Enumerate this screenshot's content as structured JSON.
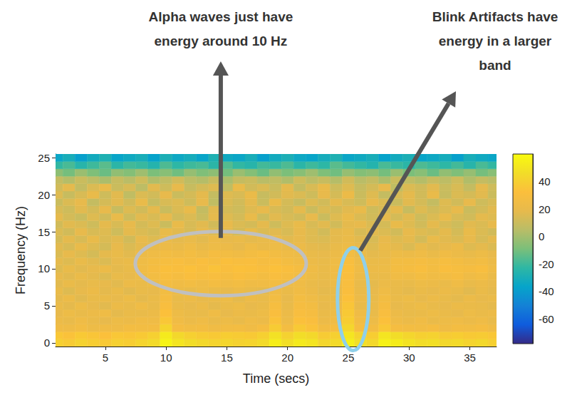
{
  "chart_data": {
    "type": "heatmap",
    "xlabel": "Time (secs)",
    "ylabel": "Frequency (Hz)",
    "grid": false,
    "x": [
      1,
      2,
      3,
      4,
      5,
      6,
      7,
      8,
      9,
      10,
      11,
      12,
      13,
      14,
      15,
      16,
      17,
      18,
      19,
      20,
      21,
      22,
      23,
      24,
      25,
      26,
      27,
      28,
      29,
      30,
      31,
      32,
      33,
      34,
      35,
      36,
      37
    ],
    "y": [
      0,
      1,
      2,
      3,
      4,
      5,
      6,
      7,
      8,
      9,
      10,
      11,
      12,
      13,
      14,
      15,
      16,
      17,
      18,
      19,
      20,
      21,
      22,
      23,
      24,
      25
    ],
    "cells": [
      [
        40,
        38,
        41,
        39,
        37,
        40,
        39,
        42,
        45,
        57,
        50,
        46,
        44,
        42,
        43,
        41,
        42,
        45,
        54,
        47,
        52,
        50,
        43,
        45,
        55,
        47,
        44,
        56,
        53,
        49,
        46,
        47,
        44,
        45,
        42,
        44,
        40
      ],
      [
        36,
        34,
        37,
        35,
        33,
        36,
        35,
        37,
        40,
        52,
        44,
        40,
        38,
        37,
        39,
        38,
        37,
        40,
        48,
        41,
        46,
        44,
        38,
        40,
        50,
        42,
        39,
        50,
        46,
        43,
        40,
        41,
        38,
        39,
        37,
        38,
        36
      ],
      [
        25,
        24,
        26,
        23,
        25,
        24,
        27,
        26,
        27,
        42,
        28,
        26,
        27,
        25,
        26,
        27,
        25,
        28,
        38,
        27,
        37,
        34,
        26,
        29,
        43,
        29,
        27,
        36,
        28,
        27,
        26,
        28,
        25,
        27,
        26,
        28,
        25
      ],
      [
        22,
        20,
        24,
        21,
        19,
        23,
        22,
        25,
        24,
        36,
        25,
        22,
        24,
        21,
        23,
        20,
        24,
        22,
        34,
        23,
        33,
        31,
        22,
        25,
        39,
        26,
        23,
        33,
        24,
        22,
        25,
        21,
        23,
        24,
        22,
        24,
        20
      ],
      [
        19,
        23,
        20,
        22,
        24,
        18,
        21,
        20,
        22,
        33,
        23,
        21,
        20,
        24,
        19,
        22,
        21,
        23,
        31,
        22,
        30,
        28,
        21,
        23,
        37,
        24,
        20,
        30,
        22,
        20,
        21,
        23,
        21,
        19,
        23,
        21,
        22
      ],
      [
        21,
        18,
        23,
        19,
        17,
        22,
        20,
        24,
        20,
        30,
        21,
        19,
        22,
        18,
        21,
        23,
        19,
        21,
        29,
        20,
        28,
        26,
        19,
        22,
        35,
        20,
        21,
        28,
        19,
        21,
        23,
        20,
        19,
        22,
        21,
        20,
        18
      ],
      [
        18,
        22,
        17,
        20,
        21,
        19,
        23,
        18,
        21,
        28,
        20,
        22,
        19,
        21,
        23,
        18,
        22,
        20,
        26,
        19,
        27,
        24,
        20,
        21,
        33,
        22,
        20,
        26,
        21,
        23,
        19,
        22,
        20,
        18,
        22,
        19,
        21
      ],
      [
        20,
        16,
        19,
        22,
        18,
        21,
        17,
        20,
        19,
        26,
        22,
        20,
        23,
        21,
        19,
        22,
        20,
        18,
        24,
        21,
        25,
        22,
        18,
        20,
        31,
        21,
        19,
        24,
        20,
        18,
        21,
        19,
        22,
        20,
        17,
        21,
        18
      ],
      [
        17,
        21,
        18,
        20,
        19,
        17,
        22,
        21,
        23,
        27,
        25,
        26,
        24,
        27,
        25,
        26,
        24,
        25,
        26,
        23,
        24,
        21,
        19,
        22,
        30,
        20,
        18,
        22,
        21,
        20,
        23,
        22,
        21,
        24,
        20,
        22,
        19
      ],
      [
        19,
        17,
        21,
        18,
        16,
        20,
        19,
        23,
        26,
        30,
        28,
        31,
        29,
        30,
        28,
        31,
        29,
        27,
        30,
        28,
        26,
        23,
        20,
        24,
        31,
        22,
        20,
        21,
        25,
        24,
        27,
        25,
        26,
        28,
        24,
        26,
        21
      ],
      [
        16,
        20,
        17,
        19,
        22,
        18,
        20,
        25,
        28,
        32,
        31,
        33,
        30,
        34,
        31,
        33,
        32,
        30,
        33,
        31,
        28,
        24,
        21,
        25,
        32,
        24,
        22,
        23,
        27,
        28,
        30,
        27,
        31,
        29,
        28,
        30,
        24
      ],
      [
        18,
        16,
        20,
        17,
        15,
        19,
        21,
        24,
        27,
        29,
        30,
        28,
        31,
        29,
        32,
        30,
        31,
        28,
        30,
        27,
        25,
        22,
        20,
        24,
        30,
        23,
        21,
        22,
        26,
        27,
        28,
        26,
        29,
        27,
        25,
        26,
        22
      ],
      [
        15,
        19,
        16,
        13,
        18,
        20,
        17,
        22,
        24,
        26,
        25,
        27,
        24,
        28,
        26,
        25,
        27,
        29,
        26,
        24,
        23,
        20,
        19,
        22,
        26,
        21,
        18,
        20,
        23,
        22,
        24,
        21,
        25,
        22,
        20,
        23,
        19
      ],
      [
        17,
        14,
        20,
        16,
        13,
        19,
        15,
        18,
        20,
        22,
        21,
        24,
        20,
        23,
        22,
        19,
        24,
        21,
        23,
        20,
        22,
        18,
        17,
        20,
        23,
        19,
        16,
        21,
        18,
        15,
        20,
        17,
        19,
        22,
        16,
        18,
        15
      ],
      [
        13,
        18,
        14,
        20,
        15,
        17,
        12,
        19,
        16,
        21,
        18,
        20,
        17,
        22,
        19,
        21,
        18,
        20,
        22,
        17,
        19,
        16,
        15,
        18,
        21,
        17,
        14,
        19,
        16,
        18,
        13,
        20,
        17,
        15,
        19,
        14,
        18
      ],
      [
        15,
        12,
        19,
        14,
        16,
        11,
        18,
        15,
        13,
        20,
        17,
        14,
        19,
        16,
        18,
        13,
        20,
        15,
        17,
        14,
        19,
        16,
        12,
        18,
        20,
        14,
        17,
        15,
        12,
        19,
        16,
        14,
        18,
        13,
        20,
        15,
        12
      ],
      [
        12,
        17,
        15,
        11,
        18,
        14,
        19,
        13,
        16,
        10,
        20,
        14,
        17,
        12,
        19,
        15,
        13,
        18,
        11,
        16,
        20,
        14,
        17,
        12,
        18,
        19,
        15,
        13,
        20,
        16,
        12,
        18,
        14,
        11,
        17,
        15,
        19
      ],
      [
        18,
        13,
        10,
        16,
        12,
        20,
        11,
        17,
        14,
        19,
        12,
        15,
        10,
        18,
        16,
        13,
        20,
        11,
        17,
        14,
        12,
        19,
        10,
        16,
        21,
        15,
        12,
        18,
        13,
        17,
        11,
        15,
        20,
        14,
        12,
        18,
        16
      ],
      [
        14,
        11,
        17,
        13,
        19,
        9,
        16,
        12,
        18,
        10,
        15,
        20,
        8,
        17,
        13,
        11,
        16,
        19,
        14,
        12,
        18,
        10,
        15,
        13,
        17,
        20,
        11,
        14,
        18,
        9,
        16,
        12,
        15,
        19,
        10,
        13,
        17
      ],
      [
        10,
        15,
        19,
        8,
        13,
        17,
        12,
        20,
        9,
        14,
        16,
        11,
        19,
        7,
        15,
        12,
        18,
        10,
        21,
        13,
        9,
        16,
        12,
        18,
        14,
        11,
        19,
        15,
        10,
        17,
        13,
        8,
        16,
        12,
        19,
        11,
        14
      ],
      [
        16,
        9,
        14,
        20,
        11,
        17,
        7,
        15,
        12,
        19,
        10,
        13,
        18,
        8,
        16,
        14,
        21,
        9,
        12,
        17,
        15,
        11,
        19,
        13,
        22,
        10,
        16,
        8,
        14,
        18,
        12,
        20,
        9,
        15,
        13,
        17,
        10
      ],
      [
        12,
        18,
        8,
        15,
        20,
        10,
        14,
        6,
        17,
        11,
        19,
        9,
        13,
        16,
        7,
        21,
        12,
        15,
        10,
        18,
        8,
        14,
        20,
        11,
        16,
        9,
        13,
        19,
        7,
        15,
        12,
        17,
        10,
        14,
        8,
        18,
        11
      ],
      [
        8,
        4,
        10,
        6,
        2,
        9,
        5,
        11,
        3,
        7,
        12,
        6,
        4,
        9,
        2,
        8,
        10,
        5,
        7,
        3,
        11,
        6,
        9,
        4,
        12,
        5,
        8,
        2,
        10,
        7,
        4,
        9,
        6,
        11,
        3,
        8,
        5
      ],
      [
        -5,
        -10,
        -2,
        -8,
        -12,
        -4,
        -7,
        -1,
        -9,
        -6,
        -11,
        -3,
        -8,
        -5,
        -10,
        -2,
        -7,
        -12,
        -4,
        -9,
        -6,
        -1,
        -8,
        -11,
        -3,
        -7,
        -5,
        -10,
        -2,
        -9,
        -6,
        -12,
        -4,
        -8,
        -3,
        -10,
        -6
      ],
      [
        -22,
        -18,
        -25,
        -20,
        -15,
        -24,
        -19,
        -21,
        -26,
        -17,
        -23,
        -20,
        -18,
        -24,
        -16,
        -22,
        -25,
        -19,
        -21,
        -17,
        -24,
        -20,
        -23,
        -15,
        -19,
        -22,
        -26,
        -18,
        -21,
        -24,
        -17,
        -20,
        -23,
        -19,
        -25,
        -18,
        -22
      ],
      [
        -35,
        -30,
        -38,
        -32,
        -28,
        -36,
        -33,
        -30,
        -37,
        -29,
        -34,
        -31,
        -36,
        -28,
        -33,
        -35,
        -30,
        -38,
        -32,
        -29,
        -34,
        -36,
        -31,
        -28,
        -35,
        -33,
        -30,
        -37,
        -32,
        -29,
        -36,
        -34,
        -31,
        -38,
        -30,
        -33,
        -35
      ]
    ],
    "xlim": [
      0.9,
      37.2
    ],
    "xticks": [
      5,
      10,
      15,
      20,
      25,
      30,
      35
    ],
    "ylim": [
      -0.5,
      25.5
    ],
    "yticks": [
      0,
      5,
      10,
      15,
      20,
      25
    ],
    "colorbar": {
      "range": [
        -78,
        60
      ],
      "ticks": [
        -60,
        -40,
        -20,
        0,
        20,
        40
      ]
    },
    "annotations": [
      {
        "text": "Alpha waves just have energy around 10 Hz",
        "x": 14.5,
        "y": 10.7
      },
      {
        "text": "Blink Artifacts have energy in a larger band",
        "x": 25.4,
        "y": 5.9
      }
    ]
  }
}
